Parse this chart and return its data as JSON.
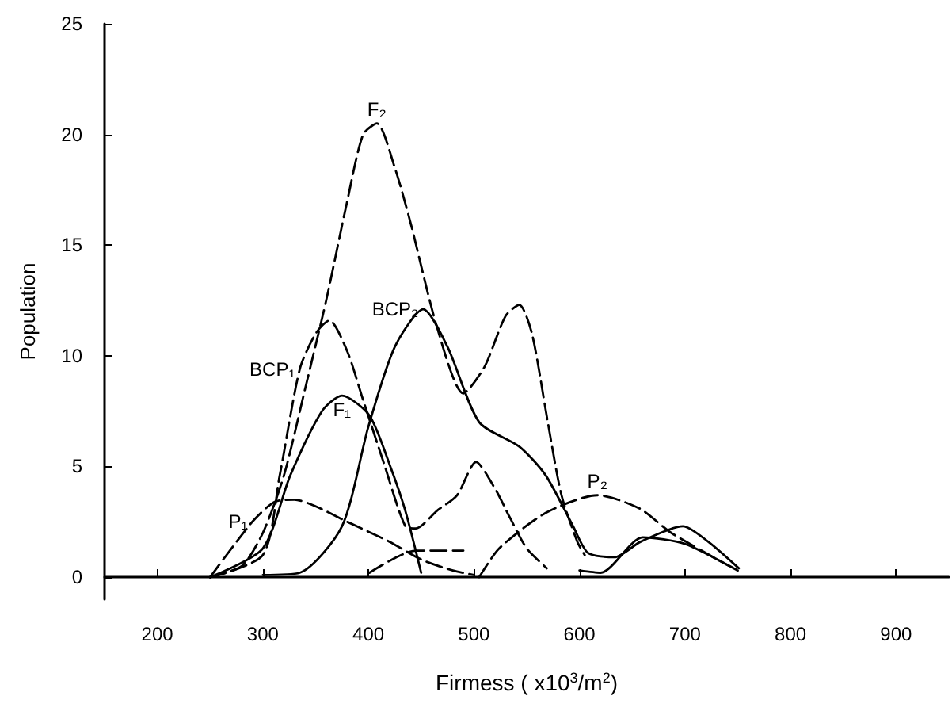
{
  "chart_data": {
    "type": "line",
    "xlabel": "Firmess ( x10$^{3}$/m$^{2}$)",
    "ylabel": "Population",
    "xlim": [
      150,
      950
    ],
    "ylim": [
      -1,
      25
    ],
    "xticks": [
      200,
      300,
      400,
      500,
      600,
      700,
      800,
      900
    ],
    "yticks": [
      0,
      5,
      10,
      15,
      20,
      25
    ],
    "grid": false,
    "legend": false,
    "marker": "none",
    "series": [
      {
        "name": "F₂",
        "color": "#000000",
        "line_style": "dashed",
        "x": [
          250,
          280,
          300,
          320,
          340,
          360,
          380,
          395,
          408,
          425,
          440,
          465,
          490,
          510,
          530,
          543,
          555,
          570,
          583,
          598,
          605
        ],
        "values": [
          0,
          0.5,
          2,
          4.6,
          8.5,
          12.5,
          17,
          20,
          20.5,
          18.5,
          16,
          11.3,
          8.3,
          9.5,
          11.8,
          12.3,
          11,
          7,
          3.7,
          1.6,
          1
        ]
      },
      {
        "name": "BCP₁",
        "color": "#000000",
        "line_style": "dashed",
        "x": [
          250,
          300,
          316,
          335,
          350,
          363,
          380,
          395,
          415,
          435,
          445,
          465,
          484,
          502,
          520,
          534,
          550,
          569
        ],
        "values": [
          0,
          1,
          4.6,
          9.4,
          11,
          11.6,
          10.2,
          8,
          5.1,
          2.3,
          2.2,
          3,
          3.7,
          5.2,
          4,
          2.7,
          1.3,
          0.4
        ]
      },
      {
        "name": "F₁",
        "color": "#000000",
        "line_style": "solid",
        "x": [
          250,
          300,
          326,
          356,
          375,
          401,
          420,
          435,
          450,
          500,
          600,
          620,
          660,
          700,
          750
        ],
        "values": [
          0,
          1.3,
          4.6,
          7.5,
          8.2,
          7.3,
          5.1,
          3,
          0.2,
          null,
          0.3,
          0.2,
          1.8,
          1.5,
          0.3
        ]
      },
      {
        "name": "BCP₂",
        "color": "#000000",
        "line_style": "solid",
        "x": [
          300,
          335,
          375,
          400,
          425,
          452,
          475,
          505,
          543,
          568,
          594,
          608,
          633,
          658,
          698,
          722,
          751
        ],
        "values": [
          0.1,
          0.2,
          2.3,
          6.8,
          10.4,
          12.1,
          10.4,
          7,
          5.9,
          4.6,
          2.3,
          1.1,
          0.9,
          1.6,
          2.3,
          1.6,
          0.4
        ]
      },
      {
        "name": "P₁",
        "color": "#000000",
        "line_style": "dashed",
        "x": [
          250,
          290,
          311,
          330,
          350,
          380,
          420,
          450,
          480,
          500
        ],
        "values": [
          0,
          2.5,
          3.4,
          3.5,
          3.2,
          2.5,
          1.6,
          0.8,
          0.3,
          0.1
        ]
      },
      {
        "color": "#000000",
        "line_style": "dashed",
        "x": [
          401,
          445,
          490
        ],
        "values": [
          0.2,
          1.2,
          1.2
        ]
      },
      {
        "name": "P₂",
        "color": "#000000",
        "line_style": "dashed",
        "x": [
          505,
          524,
          568,
          617,
          657,
          687,
          742
        ],
        "values": [
          0,
          1.3,
          2.9,
          3.7,
          3.1,
          2,
          0.5
        ]
      }
    ]
  }
}
